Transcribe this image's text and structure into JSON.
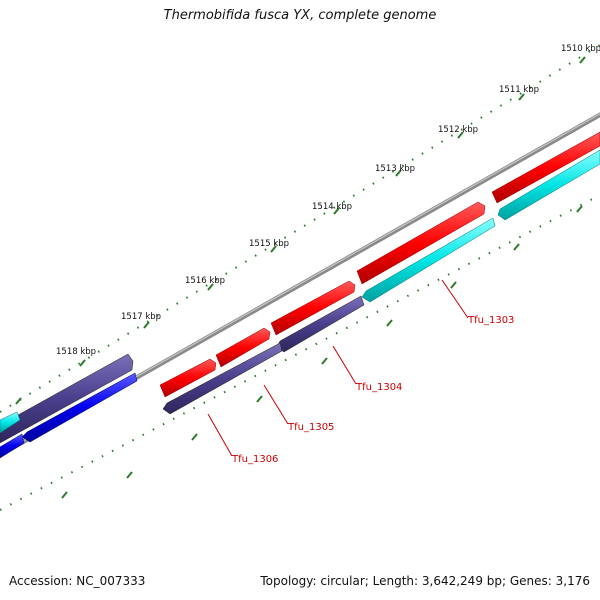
{
  "title": "Thermobifida fusca YX, complete genome",
  "footer": {
    "accession": "Accession: NC_007333",
    "summary": "Topology: circular; Length: 3,642,249 bp; Genes: 3,176"
  },
  "ruler_labels": [
    "1510 kbp",
    "1511 kbp",
    "1512 kbp",
    "1513 kbp",
    "1514 kbp",
    "1515 kbp",
    "1516 kbp",
    "1517 kbp",
    "1518 kbp"
  ],
  "gene_labels": [
    "Tfu_1303",
    "Tfu_1304",
    "Tfu_1305",
    "Tfu_1306"
  ],
  "colors": {
    "forward_gene": "#ff0000",
    "reverse_gene_cyan": "#00e5e5",
    "reverse_gene_navy": "#4a3f8c",
    "reverse_gene_blue": "#0000ee",
    "backbone": "#888888",
    "tick": "#2a7a2a",
    "label": "#cc0000"
  }
}
